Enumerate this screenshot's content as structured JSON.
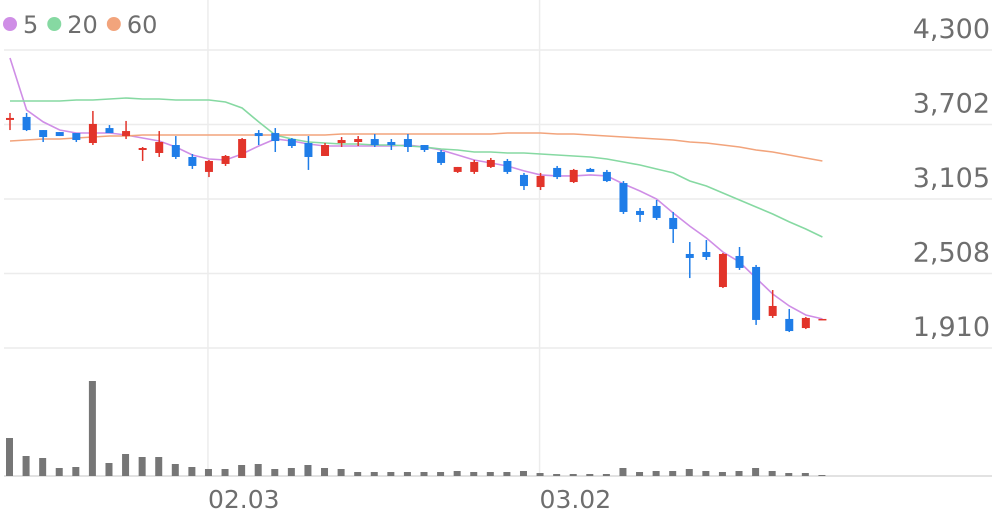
{
  "chart_data": {
    "type": "candlestick",
    "categories": [
      null,
      null,
      null,
      null,
      null,
      null,
      null,
      null,
      null,
      null,
      null,
      null,
      "02.03",
      null,
      null,
      null,
      null,
      null,
      null,
      null,
      null,
      null,
      null,
      null,
      null,
      null,
      null,
      null,
      null,
      null,
      null,
      null,
      "03.02",
      null,
      null,
      null,
      null,
      null,
      null,
      null,
      null,
      null,
      null,
      null,
      null,
      null,
      null,
      null,
      null,
      null
    ],
    "open": [
      3739,
      3763,
      3658,
      3642,
      3634,
      3554,
      3674,
      3610,
      3498,
      3474,
      3538,
      3442,
      3322,
      3386,
      3434,
      3634,
      3634,
      3586,
      3554,
      3450,
      3554,
      3562,
      3586,
      3562,
      3586,
      3538,
      3482,
      3322,
      3322,
      3362,
      3410,
      3298,
      3201,
      3354,
      3241,
      3346,
      3322,
      3233,
      3009,
      3049,
      2953,
      2664,
      2680,
      2399,
      2648,
      2560,
      2167,
      2143,
      2070,
      2135
    ],
    "high": [
      3795,
      3795,
      3658,
      3642,
      3634,
      3811,
      3698,
      3731,
      3522,
      3650,
      3610,
      3466,
      3418,
      3458,
      3594,
      3658,
      3674,
      3594,
      3610,
      3554,
      3602,
      3610,
      3626,
      3586,
      3626,
      3538,
      3498,
      3362,
      3418,
      3434,
      3426,
      3314,
      3314,
      3370,
      3346,
      3354,
      3338,
      3249,
      3033,
      3097,
      3001,
      2760,
      2776,
      2672,
      2720,
      2576,
      2375,
      2223,
      2159,
      2143
    ],
    "low": [
      3658,
      3650,
      3562,
      3610,
      3562,
      3538,
      3634,
      3586,
      3410,
      3442,
      3426,
      3346,
      3281,
      3370,
      3434,
      3538,
      3482,
      3514,
      3338,
      3450,
      3522,
      3530,
      3522,
      3498,
      3482,
      3482,
      3378,
      3314,
      3306,
      3354,
      3306,
      3177,
      3177,
      3265,
      3233,
      3322,
      3241,
      2985,
      2921,
      2937,
      2752,
      2471,
      2616,
      2391,
      2536,
      2095,
      2151,
      2038,
      2062,
      2135
    ],
    "close": [
      3755,
      3658,
      3602,
      3610,
      3578,
      3707,
      3634,
      3650,
      3514,
      3562,
      3442,
      3370,
      3410,
      3450,
      3586,
      3610,
      3570,
      3530,
      3442,
      3538,
      3578,
      3586,
      3538,
      3538,
      3522,
      3498,
      3394,
      3362,
      3402,
      3418,
      3322,
      3209,
      3290,
      3281,
      3338,
      3322,
      3249,
      3001,
      2977,
      2953,
      2864,
      2632,
      2640,
      2664,
      2552,
      2135,
      2247,
      2046,
      2151,
      2143
    ],
    "up_color": "#e2342a",
    "down_color": "#1f7de8",
    "series": [
      {
        "name": "5",
        "color": "#cf8ee6",
        "values": [
          4236,
          3819,
          3723,
          3658,
          3634,
          3634,
          3634,
          3618,
          3594,
          3570,
          3522,
          3458,
          3426,
          3418,
          3466,
          3530,
          3586,
          3570,
          3546,
          3530,
          3530,
          3530,
          3530,
          3530,
          3538,
          3522,
          3498,
          3458,
          3418,
          3394,
          3370,
          3330,
          3298,
          3290,
          3290,
          3298,
          3290,
          3225,
          3169,
          3105,
          2993,
          2888,
          2792,
          2680,
          2600,
          2471,
          2343,
          2247,
          2175,
          2143
        ]
      },
      {
        "name": "20",
        "color": "#86d9a2",
        "values": [
          3891,
          3891,
          3891,
          3891,
          3899,
          3899,
          3907,
          3915,
          3907,
          3907,
          3899,
          3899,
          3899,
          3883,
          3835,
          3723,
          3618,
          3586,
          3562,
          3554,
          3546,
          3546,
          3538,
          3538,
          3530,
          3522,
          3506,
          3498,
          3482,
          3482,
          3474,
          3474,
          3466,
          3458,
          3450,
          3442,
          3426,
          3402,
          3378,
          3346,
          3314,
          3249,
          3209,
          3153,
          3097,
          3041,
          2985,
          2921,
          2864,
          2800
        ]
      },
      {
        "name": "60",
        "color": "#f2a47c",
        "values": [
          3570,
          3578,
          3586,
          3586,
          3594,
          3602,
          3610,
          3610,
          3618,
          3618,
          3618,
          3618,
          3618,
          3618,
          3618,
          3618,
          3618,
          3618,
          3618,
          3618,
          3626,
          3626,
          3626,
          3626,
          3626,
          3626,
          3626,
          3626,
          3626,
          3626,
          3634,
          3634,
          3634,
          3626,
          3626,
          3618,
          3610,
          3602,
          3594,
          3586,
          3578,
          3562,
          3554,
          3538,
          3522,
          3498,
          3482,
          3458,
          3434,
          3410
        ]
      }
    ],
    "ylim": [
      1910,
      4300
    ],
    "yticks": [
      {
        "value": 4300,
        "label": "4,300"
      },
      {
        "value": 3702,
        "label": "3,702"
      },
      {
        "value": 3105,
        "label": "3,105"
      },
      {
        "value": 2508,
        "label": "2,508"
      },
      {
        "value": 1910,
        "label": "1,910"
      }
    ],
    "grid": true,
    "volume": {
      "color": "#767676",
      "values": [
        38,
        20,
        18,
        8,
        9,
        95,
        13,
        22,
        19,
        19,
        12,
        9,
        7,
        7,
        11,
        12,
        7,
        8,
        11,
        8,
        7,
        4,
        4,
        4,
        4,
        4,
        4,
        5,
        4,
        4,
        4,
        5,
        3,
        2,
        2,
        2,
        2,
        8,
        4,
        5,
        5,
        7,
        5,
        4,
        5,
        8,
        5,
        3,
        3,
        1
      ]
    }
  }
}
